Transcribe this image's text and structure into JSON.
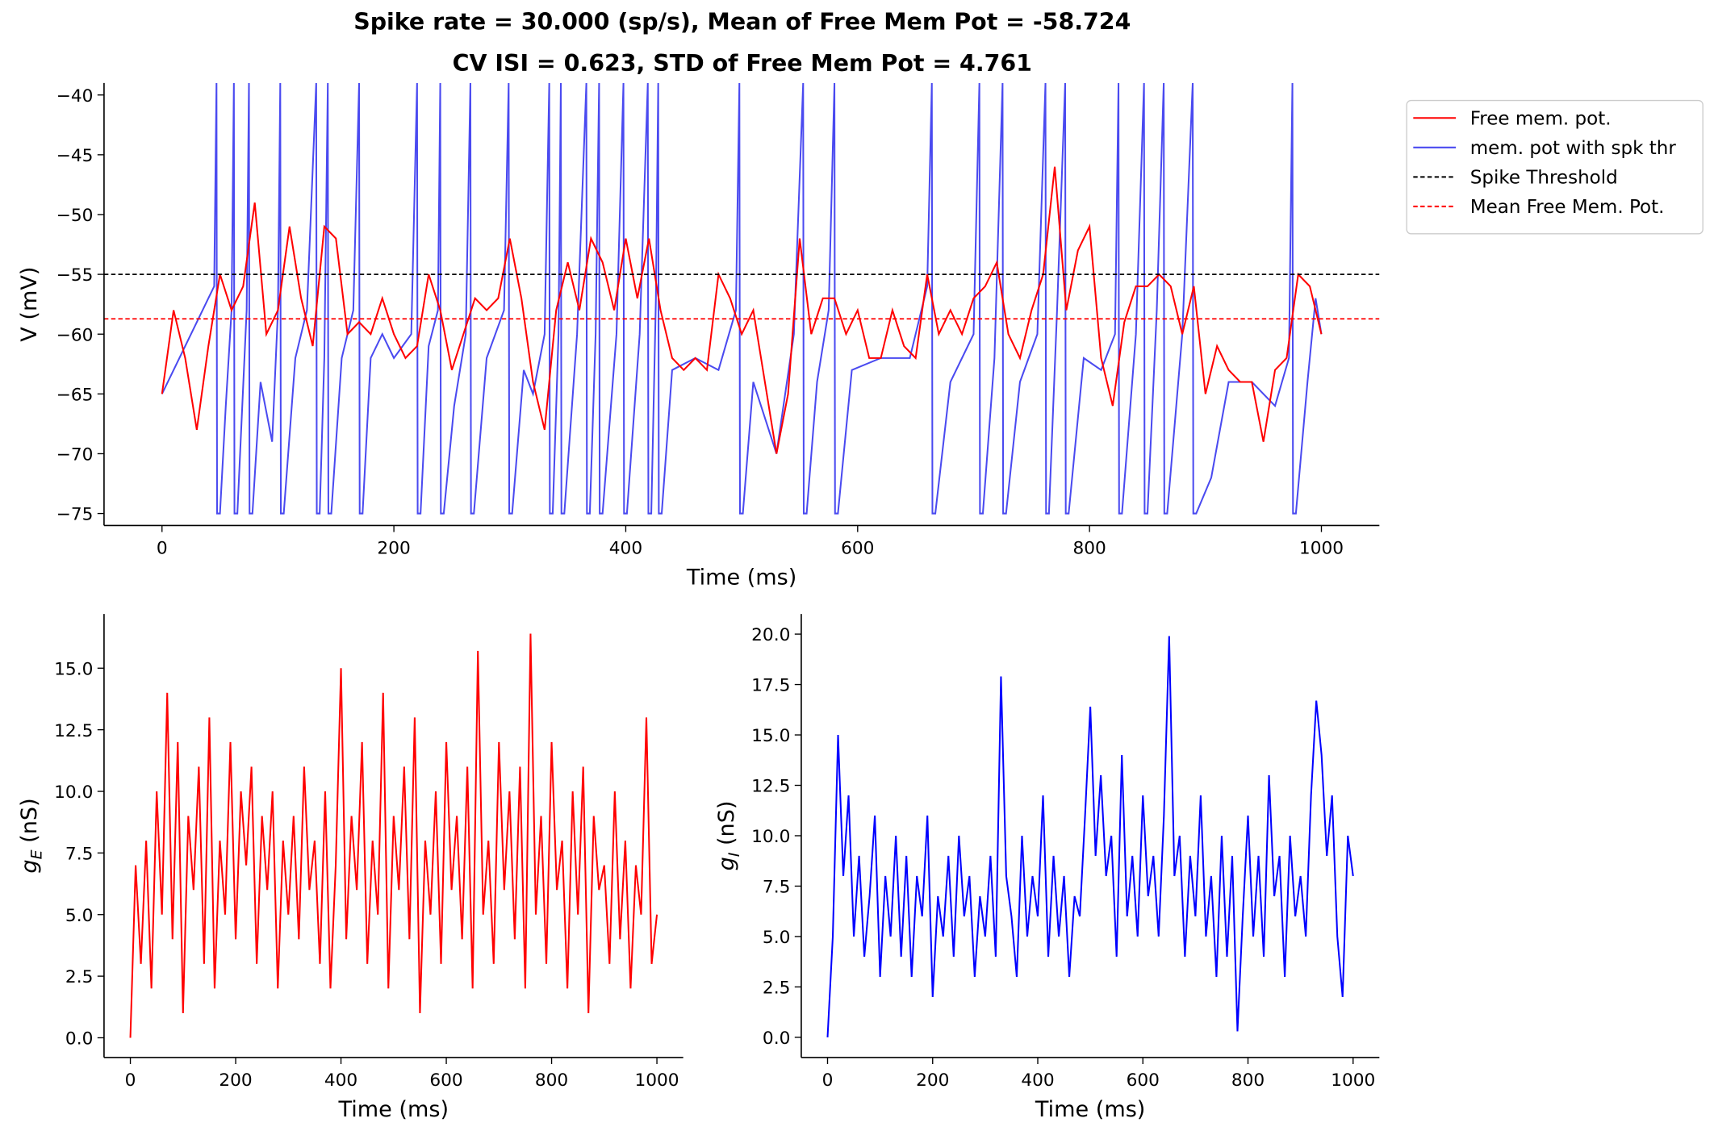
{
  "chart_data": [
    {
      "type": "line",
      "title": "Spike rate = 30.000 (sp/s), Mean of Free Mem Pot = -58.724",
      "subtitle": "CV ISI = 0.623, STD of Free Mem Pot = 4.761",
      "xlabel": "Time (ms)",
      "ylabel": "V (mV)",
      "xlim": [
        -50,
        1050
      ],
      "ylim": [
        -76,
        -39
      ],
      "xticks": [
        0,
        200,
        400,
        600,
        800,
        1000
      ],
      "yticks": [
        {
          "value": -75,
          "label": "−75"
        },
        {
          "value": -70,
          "label": "−70"
        },
        {
          "value": -65,
          "label": "−65"
        },
        {
          "value": -60,
          "label": "−60"
        },
        {
          "value": -55,
          "label": "−55"
        },
        {
          "value": -50,
          "label": "−50"
        },
        {
          "value": -45,
          "label": "−45"
        },
        {
          "value": -40,
          "label": "−40"
        }
      ],
      "legend": "upper right outside",
      "series": [
        {
          "name": "Free mem. pot.",
          "color": "#ff0000",
          "x": [
            0,
            10,
            20,
            30,
            40,
            50,
            60,
            70,
            80,
            90,
            100,
            110,
            120,
            130,
            140,
            150,
            160,
            170,
            180,
            190,
            200,
            210,
            220,
            230,
            240,
            250,
            260,
            270,
            280,
            290,
            300,
            310,
            320,
            330,
            340,
            350,
            360,
            370,
            380,
            390,
            400,
            410,
            420,
            430,
            440,
            450,
            460,
            470,
            480,
            490,
            500,
            510,
            520,
            530,
            540,
            550,
            560,
            570,
            580,
            590,
            600,
            610,
            620,
            630,
            640,
            650,
            660,
            670,
            680,
            690,
            700,
            710,
            720,
            730,
            740,
            750,
            760,
            770,
            780,
            790,
            800,
            810,
            820,
            830,
            840,
            850,
            860,
            870,
            880,
            890,
            900,
            910,
            920,
            930,
            940,
            950,
            960,
            970,
            980,
            990,
            1000
          ],
          "values": [
            -65,
            -58,
            -62,
            -68,
            -61,
            -55,
            -58,
            -56,
            -49,
            -60,
            -58,
            -51,
            -57,
            -61,
            -51,
            -52,
            -60,
            -59,
            -60,
            -57,
            -60,
            -62,
            -61,
            -55,
            -58,
            -63,
            -60,
            -57,
            -58,
            -57,
            -52,
            -57,
            -64,
            -68,
            -58,
            -54,
            -58,
            -52,
            -54,
            -58,
            -52,
            -57,
            -52,
            -58,
            -62,
            -63,
            -62,
            -63,
            -55,
            -57,
            -60,
            -58,
            -64,
            -70,
            -65,
            -52,
            -60,
            -57,
            -57,
            -60,
            -58,
            -62,
            -62,
            -58,
            -61,
            -62,
            -55,
            -60,
            -58,
            -60,
            -57,
            -56,
            -54,
            -60,
            -62,
            -58,
            -55,
            -46,
            -58,
            -53,
            -51,
            -62,
            -66,
            -59,
            -56,
            -56,
            -55,
            -56,
            -60,
            -56,
            -65,
            -61,
            -63,
            -64,
            -64,
            -69,
            -63,
            -62,
            -55,
            -56,
            -60
          ]
        },
        {
          "name": "mem. pot with spk thr",
          "color": "#4a4af0",
          "x": [
            0,
            45,
            47,
            47.5,
            50,
            55,
            60,
            62,
            62.5,
            65,
            73,
            75,
            75.5,
            78,
            85,
            95,
            100,
            102,
            102.5,
            105,
            115,
            125,
            133,
            133.5,
            136,
            140,
            143,
            143.5,
            146,
            155,
            165,
            170,
            170.5,
            173,
            180,
            190,
            200,
            215,
            220,
            220.5,
            223,
            230,
            238,
            240,
            240.5,
            243,
            252,
            262,
            266,
            266.5,
            269,
            280,
            295,
            299,
            299.5,
            302,
            312,
            320,
            330,
            334,
            334.5,
            337,
            342,
            344,
            344.5,
            347,
            358,
            366,
            366.5,
            369,
            374,
            377,
            377.5,
            380,
            392,
            398,
            398.5,
            401,
            412,
            419,
            419.5,
            422,
            426,
            428,
            428.5,
            431,
            440,
            460,
            480,
            495,
            498,
            498.5,
            501,
            510,
            530,
            545,
            553,
            553.5,
            556,
            565,
            575,
            580,
            580.5,
            583,
            595,
            620,
            645,
            660,
            664,
            664.5,
            667,
            680,
            700,
            705,
            705.5,
            708,
            718,
            725,
            725.5,
            728,
            740,
            755,
            762,
            762.5,
            765,
            772,
            779,
            779.5,
            782,
            795,
            810,
            822,
            825,
            825.5,
            828,
            840,
            847,
            847.5,
            850,
            858,
            864,
            864.5,
            867,
            880,
            889,
            889.5,
            892,
            905,
            920,
            940,
            960,
            972,
            975,
            975.5,
            978,
            988,
            995,
            1000
          ],
          "values": [
            -65,
            -56,
            -39,
            -75,
            -75,
            -66,
            -58,
            -39,
            -75,
            -75,
            -58,
            -39,
            -75,
            -75,
            -64,
            -69,
            -58,
            -39,
            -75,
            -75,
            -62,
            -58,
            -39,
            -75,
            -75,
            -62,
            -39,
            -75,
            -75,
            -62,
            -58,
            -39,
            -75,
            -75,
            -62,
            -60,
            -62,
            -60,
            -39,
            -75,
            -75,
            -61,
            -58,
            -39,
            -75,
            -75,
            -66,
            -60,
            -39,
            -75,
            -75,
            -62,
            -58,
            -39,
            -75,
            -75,
            -63,
            -65,
            -60,
            -39,
            -75,
            -75,
            -60,
            -39,
            -75,
            -75,
            -60,
            -39,
            -75,
            -75,
            -60,
            -39,
            -75,
            -75,
            -60,
            -39,
            -75,
            -75,
            -60,
            -39,
            -75,
            -75,
            -57,
            -39,
            -75,
            -75,
            -63,
            -62,
            -63,
            -58,
            -39,
            -75,
            -75,
            -64,
            -70,
            -60,
            -39,
            -75,
            -75,
            -64,
            -58,
            -39,
            -75,
            -75,
            -63,
            -62,
            -62,
            -56,
            -39,
            -75,
            -75,
            -64,
            -60,
            -39,
            -75,
            -75,
            -62,
            -39,
            -75,
            -75,
            -64,
            -60,
            -39,
            -75,
            -75,
            -58,
            -39,
            -75,
            -75,
            -62,
            -63,
            -60,
            -39,
            -75,
            -75,
            -60,
            -39,
            -75,
            -75,
            -58,
            -39,
            -75,
            -75,
            -60,
            -39,
            -75,
            -75,
            -72,
            -64,
            -64,
            -66,
            -62,
            -39,
            -75,
            -75,
            -64,
            -57,
            -60
          ]
        }
      ],
      "hlines": [
        {
          "name": "Spike Threshold",
          "value": -55,
          "color": "#000000"
        },
        {
          "name": "Mean Free Mem. Pot.",
          "value": -58.724,
          "color": "#ff0000"
        }
      ]
    },
    {
      "type": "line",
      "xlabel": "Time (ms)",
      "ylabel": "gE (nS)",
      "xlim": [
        -50,
        1050
      ],
      "ylim": [
        -0.8,
        17.2
      ],
      "xticks": [
        0,
        200,
        400,
        600,
        800,
        1000
      ],
      "yticks": [
        {
          "value": 0,
          "label": "0.0"
        },
        {
          "value": 2.5,
          "label": "2.5"
        },
        {
          "value": 5,
          "label": "5.0"
        },
        {
          "value": 7.5,
          "label": "7.5"
        },
        {
          "value": 10,
          "label": "10.0"
        },
        {
          "value": 12.5,
          "label": "12.5"
        },
        {
          "value": 15,
          "label": "15.0"
        }
      ],
      "series": [
        {
          "color": "#ff0000",
          "x": [
            0,
            10,
            20,
            30,
            40,
            50,
            60,
            70,
            80,
            90,
            100,
            110,
            120,
            130,
            140,
            150,
            160,
            170,
            180,
            190,
            200,
            210,
            220,
            230,
            240,
            250,
            260,
            270,
            280,
            290,
            300,
            310,
            320,
            330,
            340,
            350,
            360,
            370,
            380,
            390,
            400,
            410,
            420,
            430,
            440,
            450,
            460,
            470,
            480,
            490,
            500,
            510,
            520,
            530,
            540,
            550,
            560,
            570,
            580,
            590,
            600,
            610,
            620,
            630,
            640,
            650,
            660,
            670,
            680,
            690,
            700,
            710,
            720,
            730,
            740,
            750,
            760,
            770,
            780,
            790,
            800,
            810,
            820,
            830,
            840,
            850,
            860,
            870,
            880,
            890,
            900,
            910,
            920,
            930,
            940,
            950,
            960,
            970,
            980,
            990,
            1000
          ],
          "values": [
            0,
            7,
            3,
            8,
            2,
            10,
            5,
            14,
            4,
            12,
            1,
            9,
            6,
            11,
            3,
            13,
            2,
            8,
            5,
            12,
            4,
            10,
            7,
            11,
            3,
            9,
            6,
            10,
            2,
            8,
            5,
            9,
            4,
            11,
            6,
            8,
            3,
            10,
            2,
            7,
            15,
            4,
            9,
            6,
            12,
            3,
            8,
            5,
            14,
            2,
            9,
            6,
            11,
            4,
            13,
            1,
            8,
            5,
            10,
            3,
            12,
            6,
            9,
            4,
            11,
            2,
            15.7,
            5,
            8,
            3,
            12,
            6,
            10,
            4,
            11,
            2,
            16.4,
            5,
            9,
            3,
            12,
            6,
            8,
            2,
            10,
            5,
            11,
            1,
            9,
            6,
            7,
            3,
            10,
            4,
            8,
            2,
            7,
            5,
            13,
            3,
            5
          ]
        }
      ]
    },
    {
      "type": "line",
      "xlabel": "Time (ms)",
      "ylabel": "gI (nS)",
      "xlim": [
        -50,
        1050
      ],
      "ylim": [
        -1,
        21
      ],
      "xticks": [
        0,
        200,
        400,
        600,
        800,
        1000
      ],
      "yticks": [
        {
          "value": 0,
          "label": "0.0"
        },
        {
          "value": 2.5,
          "label": "2.5"
        },
        {
          "value": 5,
          "label": "5.0"
        },
        {
          "value": 7.5,
          "label": "7.5"
        },
        {
          "value": 10,
          "label": "10.0"
        },
        {
          "value": 12.5,
          "label": "12.5"
        },
        {
          "value": 15,
          "label": "15.0"
        },
        {
          "value": 17.5,
          "label": "17.5"
        },
        {
          "value": 20,
          "label": "20.0"
        }
      ],
      "series": [
        {
          "color": "#0000ff",
          "x": [
            0,
            10,
            20,
            30,
            40,
            50,
            60,
            70,
            80,
            90,
            100,
            110,
            120,
            130,
            140,
            150,
            160,
            170,
            180,
            190,
            200,
            210,
            220,
            230,
            240,
            250,
            260,
            270,
            280,
            290,
            300,
            310,
            320,
            330,
            340,
            350,
            360,
            370,
            380,
            390,
            400,
            410,
            420,
            430,
            440,
            450,
            460,
            470,
            480,
            490,
            500,
            510,
            520,
            530,
            540,
            550,
            560,
            570,
            580,
            590,
            600,
            610,
            620,
            630,
            640,
            650,
            660,
            670,
            680,
            690,
            700,
            710,
            720,
            730,
            740,
            750,
            760,
            770,
            780,
            790,
            800,
            810,
            820,
            830,
            840,
            850,
            860,
            870,
            880,
            890,
            900,
            910,
            920,
            930,
            940,
            950,
            960,
            970,
            980,
            990,
            1000
          ],
          "values": [
            0,
            5,
            15,
            8,
            12,
            5,
            9,
            4,
            7,
            11,
            3,
            8,
            5,
            10,
            4,
            9,
            3,
            8,
            6,
            11,
            2,
            7,
            5,
            9,
            4,
            10,
            6,
            8,
            3,
            7,
            5,
            9,
            4,
            17.9,
            8,
            6,
            3,
            10,
            5,
            8,
            6,
            12,
            4,
            9,
            5,
            8,
            3,
            7,
            6,
            11,
            16.4,
            9,
            13,
            8,
            10,
            4,
            14,
            6,
            9,
            5,
            12,
            7,
            9,
            5,
            11,
            19.9,
            8,
            10,
            4,
            9,
            6,
            12,
            5,
            8,
            3,
            10,
            4,
            9,
            0.3,
            6,
            11,
            5,
            9,
            4,
            13,
            7,
            9,
            3,
            10,
            6,
            8,
            5,
            12,
            16.7,
            14,
            9,
            12,
            5,
            2,
            10,
            8
          ]
        }
      ]
    }
  ]
}
